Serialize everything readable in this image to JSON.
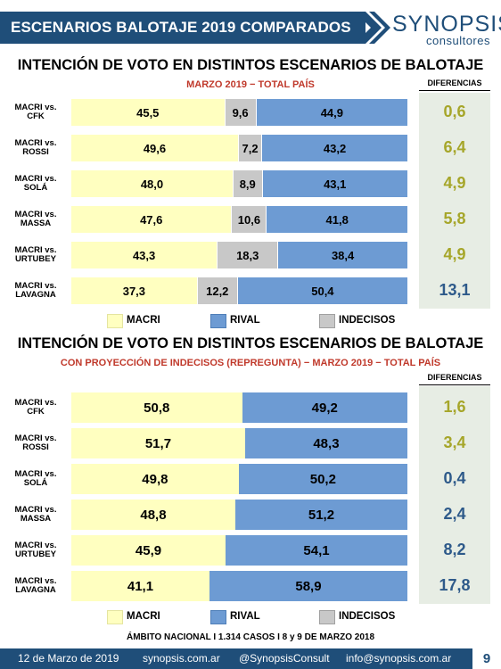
{
  "header": {
    "title": "ESCENARIOS BALOTAJE 2019 COMPARADOS",
    "logo_main": "SYNOPSIS",
    "logo_sub": "consultores"
  },
  "colors": {
    "macri": "#ffffc0",
    "undecided": "#c8c8c8",
    "rival": "#6d9bd3",
    "header": "#1f4e79",
    "subtitle": "#c0392b",
    "diff_olive": "#a6a62a",
    "diff_blue": "#2e5a8a"
  },
  "chart_data": [
    {
      "type": "bar",
      "orientation": "horizontal",
      "stacked": true,
      "title": "INTENCIÓN DE VOTO EN DISTINTOS ESCENARIOS DE BALOTAJE",
      "subtitle": "MARZO 2019 − TOTAL PAÍS",
      "diff_header": "DIFERENCIAS",
      "categories": [
        [
          "MACRI vs.",
          "CFK"
        ],
        [
          "MACRI vs.",
          "ROSSI"
        ],
        [
          "MACRI vs.",
          "SOLÁ"
        ],
        [
          "MACRI vs.",
          "MASSA"
        ],
        [
          "MACRI vs.",
          "URTUBEY"
        ],
        [
          "MACRI vs.",
          "LAVAGNA"
        ]
      ],
      "series": [
        {
          "name": "MACRI",
          "values": [
            "45,5",
            "49,6",
            "48,0",
            "47,6",
            "43,3",
            "37,3"
          ]
        },
        {
          "name": "INDECISOS",
          "values": [
            "9,6",
            "7,2",
            "8,9",
            "10,6",
            "18,3",
            "12,2"
          ]
        },
        {
          "name": "RIVAL",
          "values": [
            "44,9",
            "43,2",
            "43,1",
            "41,8",
            "38,4",
            "50,4"
          ]
        }
      ],
      "differences": [
        "0,6",
        "6,4",
        "4,9",
        "5,8",
        "4,9",
        "13,1"
      ],
      "difference_leader": [
        "macri",
        "macri",
        "macri",
        "macri",
        "macri",
        "rival"
      ],
      "legend": [
        "MACRI",
        "RIVAL",
        "INDECISOS"
      ],
      "legend_position": "bottom"
    },
    {
      "type": "bar",
      "orientation": "horizontal",
      "stacked": true,
      "title": "INTENCIÓN DE VOTO EN DISTINTOS ESCENARIOS DE BALOTAJE",
      "subtitle": "CON PROYECCIÓN DE INDECISOS (REPREGUNTA) − MARZO 2019 − TOTAL PAÍS",
      "diff_header": "DIFERENCIAS",
      "categories": [
        [
          "MACRI vs.",
          "CFK"
        ],
        [
          "MACRI vs.",
          "ROSSI"
        ],
        [
          "MACRI vs.",
          "SOLÁ"
        ],
        [
          "MACRI vs.",
          "MASSA"
        ],
        [
          "MACRI vs.",
          "URTUBEY"
        ],
        [
          "MACRI vs.",
          "LAVAGNA"
        ]
      ],
      "series": [
        {
          "name": "MACRI",
          "values": [
            "50,8",
            "51,7",
            "49,8",
            "48,8",
            "45,9",
            "41,1"
          ]
        },
        {
          "name": "RIVAL",
          "values": [
            "49,2",
            "48,3",
            "50,2",
            "51,2",
            "54,1",
            "58,9"
          ]
        }
      ],
      "differences": [
        "1,6",
        "3,4",
        "0,4",
        "2,4",
        "8,2",
        "17,8"
      ],
      "difference_leader": [
        "macri",
        "macri",
        "rival",
        "rival",
        "rival",
        "rival"
      ],
      "legend": [
        "MACRI",
        "RIVAL",
        "INDECISOS"
      ],
      "legend_position": "bottom"
    }
  ],
  "source_note": "ÁMBITO NACIONAL I 1.314 CASOS I  8  y 9 DE MARZO 2018",
  "footer": {
    "date": "12 de Marzo de 2019",
    "site": "synopsis.com.ar",
    "handle": "@SynopsisConsult",
    "email": "info@synopsis.com.ar",
    "page": "9"
  }
}
